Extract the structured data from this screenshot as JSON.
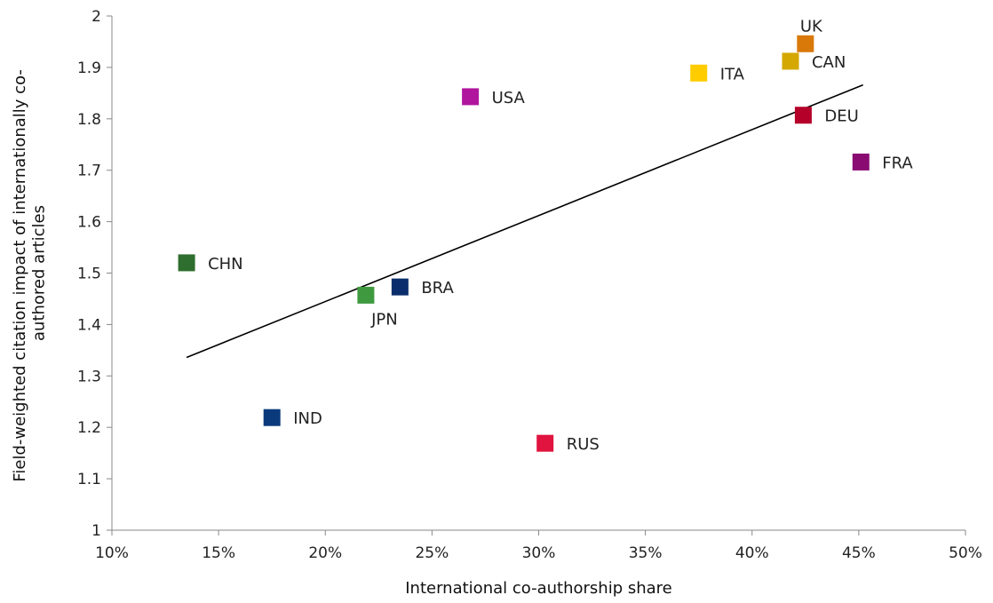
{
  "chart_data": {
    "type": "scatter",
    "title": "",
    "xlabel": "International co-authorship share",
    "ylabel_lines": [
      "Field-weighted citation impact of internationally co-",
      "authored articles"
    ],
    "xlim": [
      0.1,
      0.5
    ],
    "ylim": [
      1.0,
      2.0
    ],
    "x_ticks": [
      0.1,
      0.15,
      0.2,
      0.25,
      0.3,
      0.35,
      0.4,
      0.45,
      0.5
    ],
    "x_tick_labels": [
      "10%",
      "15%",
      "20%",
      "25%",
      "30%",
      "35%",
      "40%",
      "45%",
      "50%"
    ],
    "y_ticks": [
      1.0,
      1.1,
      1.2,
      1.3,
      1.4,
      1.5,
      1.6,
      1.7,
      1.8,
      1.9,
      2.0
    ],
    "y_tick_labels": [
      "1",
      "1.1",
      "1.2",
      "1.3",
      "1.4",
      "1.5",
      "1.6",
      "1.7",
      "1.8",
      "1.9",
      "2"
    ],
    "grid": false,
    "points": [
      {
        "label": "UK",
        "x": 0.425,
        "y": 1.946,
        "color": "#d9790a",
        "label_pos": "above"
      },
      {
        "label": "CAN",
        "x": 0.418,
        "y": 1.912,
        "color": "#d4a800",
        "label_pos": "right"
      },
      {
        "label": "ITA",
        "x": 0.375,
        "y": 1.889,
        "color": "#ffcc00",
        "label_pos": "right"
      },
      {
        "label": "USA",
        "x": 0.268,
        "y": 1.843,
        "color": "#b0159e",
        "label_pos": "right"
      },
      {
        "label": "DEU",
        "x": 0.424,
        "y": 1.807,
        "color": "#b5002a",
        "label_pos": "right"
      },
      {
        "label": "FRA",
        "x": 0.451,
        "y": 1.716,
        "color": "#8a0c73",
        "label_pos": "right"
      },
      {
        "label": "CHN",
        "x": 0.135,
        "y": 1.52,
        "color": "#2e6e2e",
        "label_pos": "right"
      },
      {
        "label": "BRA",
        "x": 0.235,
        "y": 1.473,
        "color": "#0a2e6b",
        "label_pos": "right"
      },
      {
        "label": "JPN",
        "x": 0.219,
        "y": 1.457,
        "color": "#3f9a3f",
        "label_pos": "below"
      },
      {
        "label": "IND",
        "x": 0.175,
        "y": 1.219,
        "color": "#0a3a7c",
        "label_pos": "right"
      },
      {
        "label": "RUS",
        "x": 0.303,
        "y": 1.169,
        "color": "#e0143f",
        "label_pos": "right"
      }
    ],
    "trendline": {
      "x": [
        0.135,
        0.452
      ],
      "y": [
        1.336,
        1.866
      ],
      "color": "#000000"
    }
  }
}
